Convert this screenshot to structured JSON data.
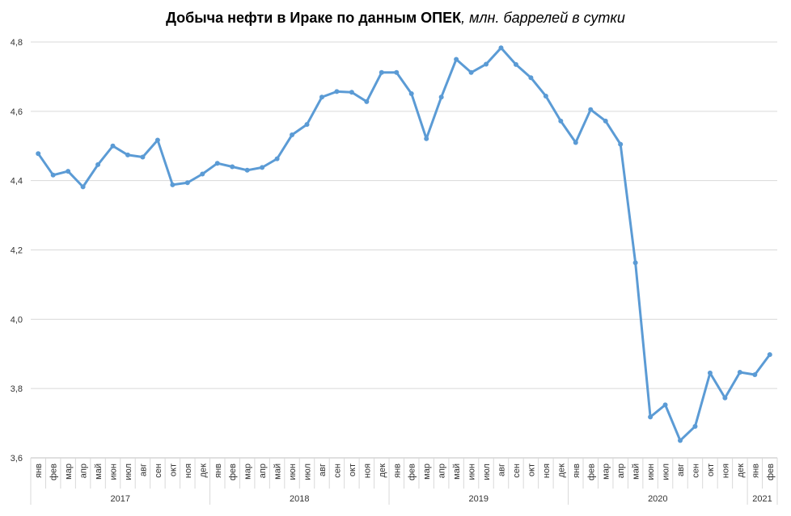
{
  "chart_data": {
    "type": "line",
    "title": "Добыча нефти в Ираке по данным ОПЕК",
    "subtitle": ", млн. баррелей в сутки",
    "ylim": [
      3.6,
      4.8
    ],
    "yticks": [
      "3,6",
      "3,8",
      "4,0",
      "4,2",
      "4,4",
      "4,6",
      "4,8"
    ],
    "ytick_values": [
      3.6,
      3.8,
      4.0,
      4.2,
      4.4,
      4.6,
      4.8
    ],
    "grid": "horizontal",
    "line_color": "#5b9bd5",
    "categories": [
      "янв",
      "фев",
      "мар",
      "апр",
      "май",
      "июн",
      "июл",
      "авг",
      "сен",
      "окт",
      "ноя",
      "дек",
      "янв",
      "фев",
      "мар",
      "апр",
      "май",
      "июн",
      "июл",
      "авг",
      "сен",
      "окт",
      "ноя",
      "дек",
      "янв",
      "фев",
      "мар",
      "апр",
      "май",
      "июн",
      "июл",
      "авг",
      "сен",
      "окт",
      "ноя",
      "дек",
      "янв",
      "фев",
      "мар",
      "апр",
      "май",
      "июн",
      "июл",
      "авг",
      "сен",
      "окт",
      "ноя",
      "дек",
      "янв",
      "фев"
    ],
    "years": [
      {
        "label": "2017",
        "count": 12
      },
      {
        "label": "2018",
        "count": 12
      },
      {
        "label": "2019",
        "count": 12
      },
      {
        "label": "2020",
        "count": 12
      },
      {
        "label": "2021",
        "count": 2
      }
    ],
    "values": [
      4.478,
      4.416,
      4.427,
      4.382,
      4.446,
      4.5,
      4.474,
      4.468,
      4.517,
      4.388,
      4.394,
      4.419,
      4.45,
      4.44,
      4.43,
      4.438,
      4.463,
      4.532,
      4.562,
      4.641,
      4.657,
      4.655,
      4.628,
      4.712,
      4.712,
      4.651,
      4.521,
      4.641,
      4.75,
      4.712,
      4.736,
      4.783,
      4.735,
      4.697,
      4.644,
      4.572,
      4.51,
      4.605,
      4.572,
      4.505,
      4.163,
      3.718,
      3.753,
      3.65,
      3.691,
      3.845,
      3.773,
      3.847,
      3.84,
      3.898
    ]
  }
}
